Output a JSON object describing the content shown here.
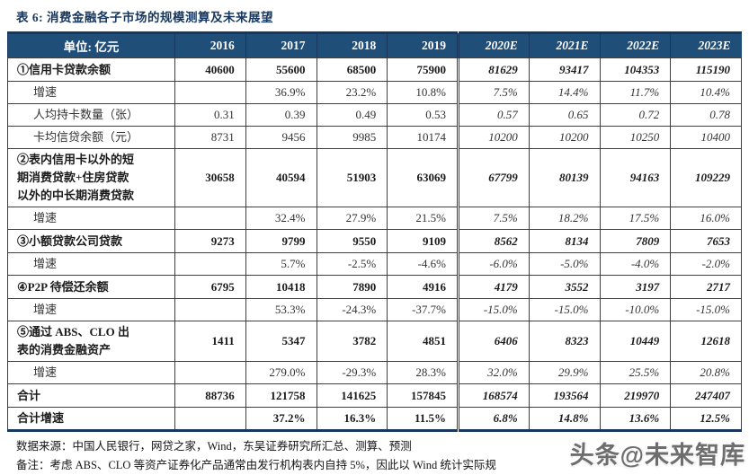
{
  "title": "表 6: 消费金融各子市场的规模测算及未来展望",
  "table": {
    "unit_header": "单位: 亿元",
    "year_columns": [
      "2016",
      "2017",
      "2018",
      "2019",
      "2020E",
      "2021E",
      "2022E",
      "2023E"
    ],
    "estimate_start_index": 4,
    "rows": [
      {
        "label": "①信用卡贷款余额",
        "type": "main",
        "values": [
          "40600",
          "55600",
          "68500",
          "75900",
          "81629",
          "93417",
          "104353",
          "115190"
        ]
      },
      {
        "label": "增速",
        "type": "sub",
        "values": [
          "",
          "36.9%",
          "23.2%",
          "10.8%",
          "7.5%",
          "14.4%",
          "11.7%",
          "10.4%"
        ]
      },
      {
        "label": "人均持卡数量（张）",
        "type": "sub",
        "values": [
          "0.31",
          "0.39",
          "0.49",
          "0.53",
          "0.57",
          "0.65",
          "0.72",
          "0.78"
        ]
      },
      {
        "label": "卡均信贷余额（元）",
        "type": "sub",
        "values": [
          "8731",
          "9456",
          "9985",
          "10174",
          "10200",
          "10200",
          "10250",
          "10400"
        ]
      },
      {
        "label": "②表内信用卡以外的短\n期消费贷款+住房贷款\n以外的中长期消费贷款",
        "type": "main",
        "values": [
          "30658",
          "40594",
          "51903",
          "63069",
          "67799",
          "80139",
          "94163",
          "109229"
        ]
      },
      {
        "label": "增速",
        "type": "sub",
        "values": [
          "",
          "32.4%",
          "27.9%",
          "21.5%",
          "7.5%",
          "18.2%",
          "17.5%",
          "16.0%"
        ]
      },
      {
        "label": "③小额贷款公司贷款",
        "type": "main",
        "values": [
          "9273",
          "9799",
          "9550",
          "9109",
          "8562",
          "8134",
          "7809",
          "7653"
        ]
      },
      {
        "label": "增速",
        "type": "sub",
        "values": [
          "",
          "5.7%",
          "-2.5%",
          "-4.6%",
          "-6.0%",
          "-5.0%",
          "-4.0%",
          "-2.0%"
        ]
      },
      {
        "label": "④P2P 待偿还余额",
        "type": "main",
        "values": [
          "6795",
          "10418",
          "7890",
          "4916",
          "4179",
          "3552",
          "3197",
          "2717"
        ]
      },
      {
        "label": "增速",
        "type": "sub",
        "values": [
          "",
          "53.3%",
          "-24.3%",
          "-37.7%",
          "-15.0%",
          "-15.0%",
          "-10.0%",
          "-15.0%"
        ]
      },
      {
        "label": "⑤通过 ABS、CLO 出\n表的消费金融资产",
        "type": "main",
        "values": [
          "1411",
          "5347",
          "3782",
          "4851",
          "6406",
          "8323",
          "10449",
          "12618"
        ]
      },
      {
        "label": "增速",
        "type": "sub",
        "values": [
          "",
          "279.0%",
          "-29.3%",
          "28.3%",
          "32.0%",
          "29.9%",
          "25.5%",
          "20.8%"
        ]
      },
      {
        "label": "合计",
        "type": "total",
        "values": [
          "88736",
          "121758",
          "141625",
          "157845",
          "168574",
          "193564",
          "219970",
          "247407"
        ]
      },
      {
        "label": "合计增速",
        "type": "total",
        "values": [
          "",
          "37.2%",
          "16.3%",
          "11.5%",
          "6.8%",
          "14.8%",
          "13.6%",
          "12.5%"
        ]
      }
    ]
  },
  "footer": {
    "source": "数据来源：中国人民银行，网贷之家，Wind，东吴证券研究所汇总、测算、预测",
    "note": "备注：考虑 ABS、CLO 等资产证券化产品通常由发行机构表内自持 5%，因此以 Wind 统计实际规",
    "watermark": "头条@未来智库"
  },
  "colors": {
    "header_bg": "#1F4E79",
    "header_text": "#FFFFFF",
    "dark_rule": "#17375E",
    "grid_line": "#3F3F3F"
  }
}
